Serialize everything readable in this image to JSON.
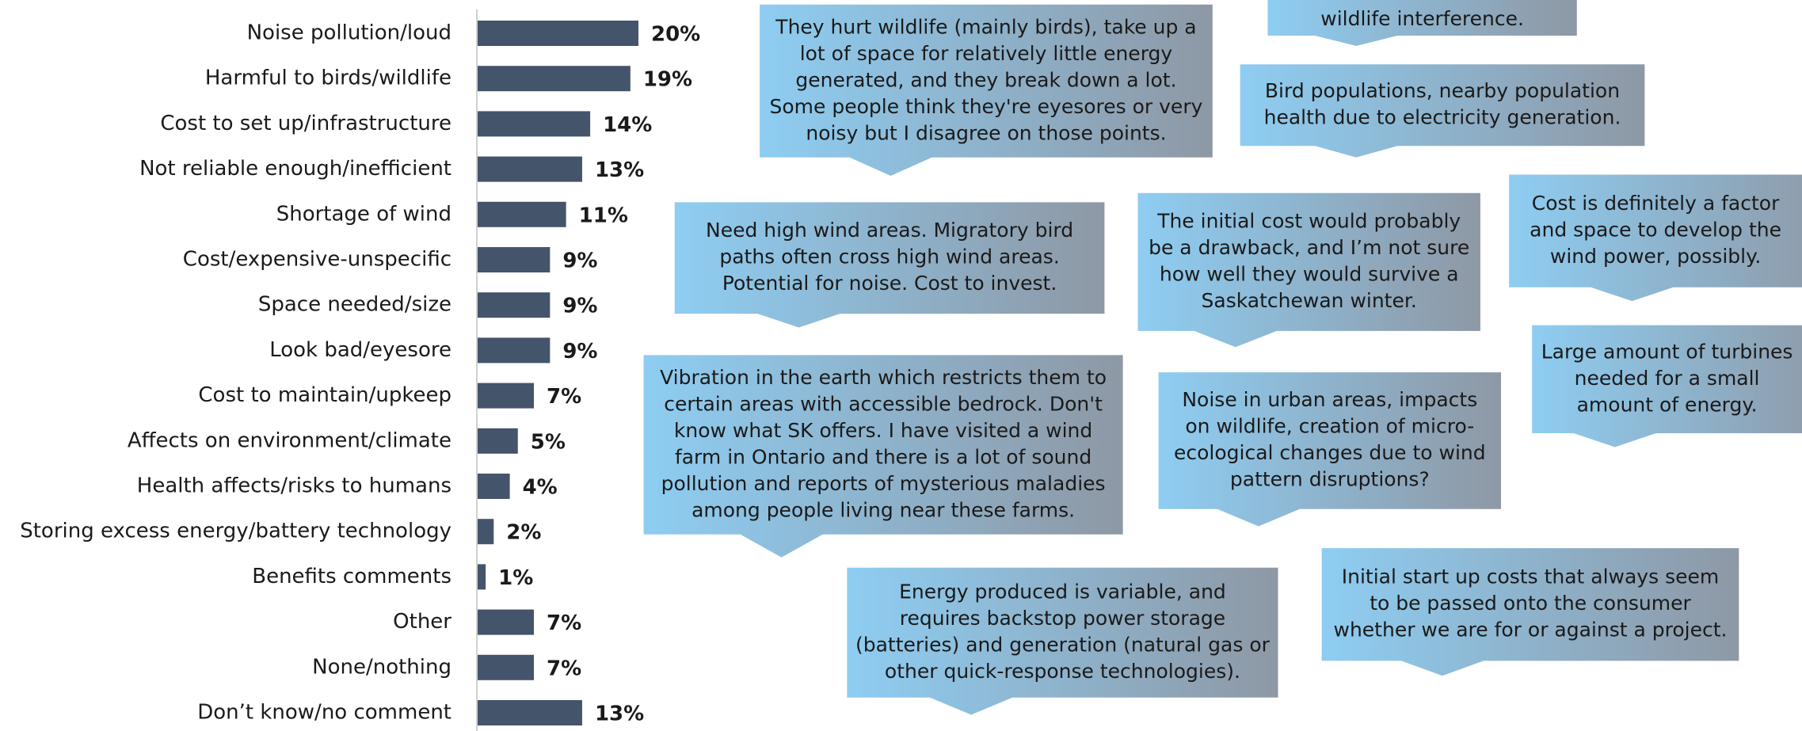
{
  "chart_data": {
    "type": "bar",
    "orientation": "horizontal",
    "color": "#44546a",
    "categories": [
      "Noise pollution/loud",
      "Harmful to birds/wildlife",
      "Cost to set up/infrastructure",
      "Not reliable enough/inefficient",
      "Shortage of wind",
      "Cost/expensive-unspecific",
      "Space needed/size",
      "Look bad/eyesore",
      "Cost to maintain/upkeep",
      "Affects on environment/climate",
      "Health affects/risks to humans",
      "Storing excess energy/battery technology",
      "Benefits comments",
      "Other",
      "None/nothing",
      "Don’t know/no comment"
    ],
    "values": [
      20,
      19,
      14,
      13,
      11,
      9,
      9,
      9,
      7,
      5,
      4,
      2,
      1,
      7,
      7,
      13
    ],
    "value_labels": [
      "20%",
      "19%",
      "14%",
      "13%",
      "11%",
      "9%",
      "9%",
      "9%",
      "7%",
      "5%",
      "4%",
      "2%",
      "1%",
      "7%",
      "7%",
      "13%"
    ],
    "annotations": [
      {
        "lines": [
          "wildlife interference."
        ]
      },
      {
        "lines": [
          "They hurt wildlife (mainly birds), take up a",
          "lot of space for relatively little energy",
          "generated, and they break down a lot.",
          "Some people think they're eyesores or very",
          "noisy but I disagree on those points."
        ]
      },
      {
        "lines": [
          "Bird populations, nearby population",
          "health due to electricity generation."
        ]
      },
      {
        "lines": [
          "Need high wind areas. Migratory bird",
          "paths often cross high wind areas.",
          "Potential for noise. Cost to invest."
        ]
      },
      {
        "lines": [
          "The initial cost would probably",
          "be a drawback, and I’m not sure",
          "how well they would survive a",
          "Saskatchewan winter."
        ]
      },
      {
        "lines": [
          "Cost is definitely a factor",
          "and space to develop the",
          "wind power, possibly."
        ]
      },
      {
        "lines": [
          "Large amount of turbines",
          "needed for a small",
          "amount of energy."
        ]
      },
      {
        "lines": [
          "Vibration in the earth which restricts them to",
          "certain areas with accessible bedrock. Don't",
          "know what SK offers. I have visited a wind",
          "farm in Ontario and there is a lot of sound",
          "pollution and reports of mysterious maladies",
          "among people living near these farms."
        ]
      },
      {
        "lines": [
          "Noise in urban areas, impacts",
          "on wildlife, creation of micro-",
          "ecological changes due to wind",
          "pattern disruptions?"
        ]
      },
      {
        "lines": [
          "Energy produced is variable, and",
          "requires backstop power storage",
          "(batteries) and generation (natural gas or",
          "other quick-response technologies)."
        ]
      },
      {
        "lines": [
          "Initial start up costs that always seem",
          "to be passed onto the consumer",
          "whether we are for or against a project."
        ]
      }
    ]
  }
}
